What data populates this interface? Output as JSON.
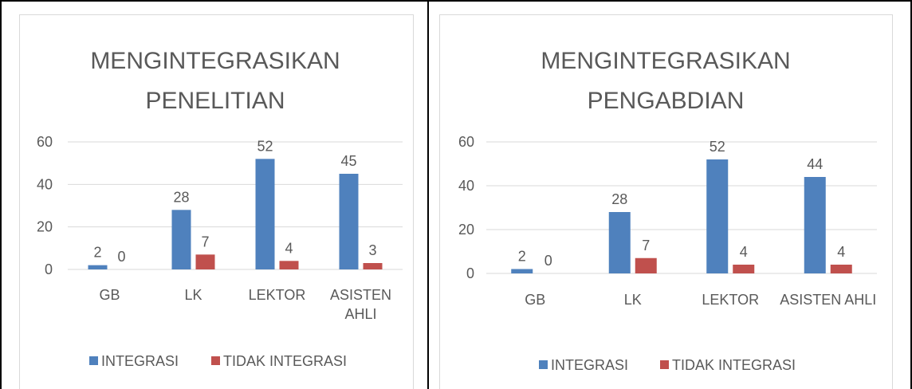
{
  "chart_data": [
    {
      "type": "bar",
      "title": "MENGINTEGRASIKAN PENELITIAN",
      "categories": [
        "GB",
        "LK",
        "LEKTOR",
        "ASISTEN AHLI"
      ],
      "series": [
        {
          "name": "INTEGRASI",
          "color": "#4f81bd",
          "values": [
            2,
            28,
            52,
            45
          ]
        },
        {
          "name": "TIDAK INTEGRASI",
          "color": "#c0504d",
          "values": [
            0,
            7,
            4,
            3
          ]
        }
      ],
      "ylim": [
        0,
        60
      ],
      "yticks": [
        0,
        20,
        40,
        60
      ],
      "grid": true,
      "legend": "bottom"
    },
    {
      "type": "bar",
      "title": "MENGINTEGRASIKAN PENGABDIAN",
      "categories": [
        "GB",
        "LK",
        "LEKTOR",
        "ASISTEN AHLI"
      ],
      "series": [
        {
          "name": "INTEGRASI",
          "color": "#4f81bd",
          "values": [
            2,
            28,
            52,
            44
          ]
        },
        {
          "name": "TIDAK INTEGRASI",
          "color": "#c0504d",
          "values": [
            0,
            7,
            4,
            4
          ]
        }
      ],
      "ylim": [
        0,
        60
      ],
      "yticks": [
        0,
        20,
        40,
        60
      ],
      "grid": true,
      "legend": "bottom"
    }
  ]
}
